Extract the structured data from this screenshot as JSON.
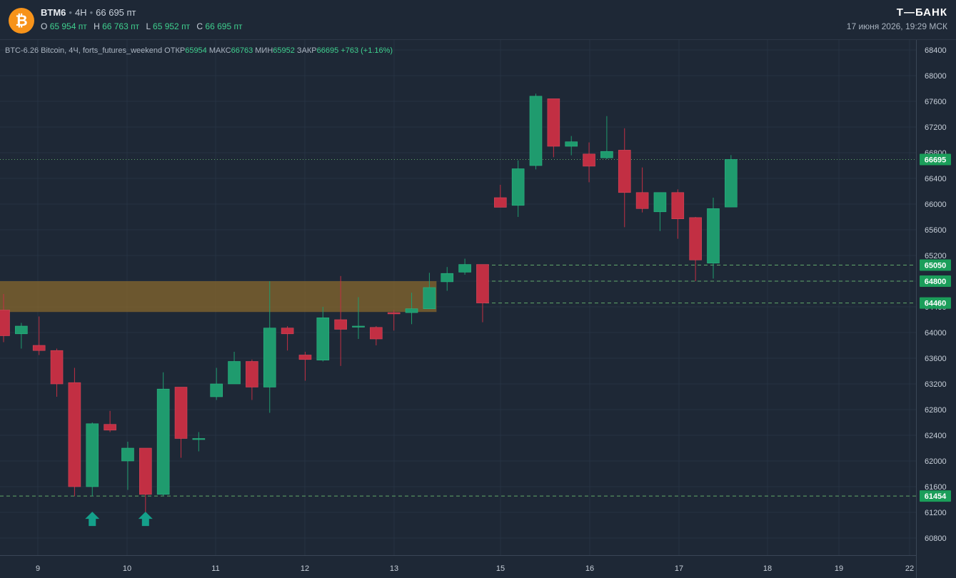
{
  "header": {
    "symbol": "BTM6",
    "interval": "4H",
    "last_price": "66 695 пт",
    "ohlc": [
      {
        "label": "O",
        "value": "65 954 пт"
      },
      {
        "label": "H",
        "value": "66 763 пт"
      },
      {
        "label": "L",
        "value": "65 952 пт"
      },
      {
        "label": "C",
        "value": "66 695 пт"
      }
    ],
    "brand": "Т—БАНК",
    "datetime": "17 июня 2026, 19:29 МСК",
    "logo_glyph": "₿",
    "logo_icon": "bitcoin-logo-icon"
  },
  "legend": {
    "instrument": "BTC-6.26 Bitcoin, 4Ч, forts_futures_weekend",
    "open_label": "ОТКР",
    "open": "65954",
    "high_label": "МАКС",
    "high": "66763",
    "low_label": "МИН",
    "low": "65952",
    "close_label": "ЗАКР",
    "close": "66695",
    "change": "+763 (+1.16%)"
  },
  "colors": {
    "background": "#1e2836",
    "up": "#1f9b6e",
    "down": "#c22f43",
    "zone": "#8a6a2c",
    "level_line": "#6fbf73",
    "price_tag": "#1b9e5a",
    "arrow": "#14a08a"
  },
  "chart_data": {
    "type": "candlestick",
    "y_axis": {
      "ticks": [
        68400,
        68000,
        67600,
        67200,
        66800,
        66400,
        66000,
        65600,
        65200,
        64800,
        64400,
        64000,
        63600,
        63200,
        62800,
        62400,
        62000,
        61600,
        61200,
        60800
      ],
      "range": [
        60500,
        68600
      ]
    },
    "x_axis": {
      "ticks": [
        "9",
        "10",
        "11",
        "12",
        "13",
        "15",
        "16",
        "17",
        "18",
        "19",
        "22"
      ]
    },
    "candles": [
      {
        "o": 64350,
        "h": 64600,
        "l": 63850,
        "c": 63950
      },
      {
        "o": 63980,
        "h": 64150,
        "l": 63750,
        "c": 64100
      },
      {
        "o": 63800,
        "h": 64250,
        "l": 63650,
        "c": 63720
      },
      {
        "o": 63720,
        "h": 63750,
        "l": 63000,
        "c": 63200
      },
      {
        "o": 63220,
        "h": 63450,
        "l": 61450,
        "c": 61600
      },
      {
        "o": 61600,
        "h": 62600,
        "l": 61450,
        "c": 62580
      },
      {
        "o": 62570,
        "h": 62780,
        "l": 62450,
        "c": 62480
      },
      {
        "o": 62000,
        "h": 62300,
        "l": 61550,
        "c": 62200
      },
      {
        "o": 62200,
        "h": 62200,
        "l": 61150,
        "c": 61480
      },
      {
        "o": 61480,
        "h": 63380,
        "l": 61450,
        "c": 63120
      },
      {
        "o": 63150,
        "h": 63150,
        "l": 62050,
        "c": 62350
      },
      {
        "o": 62350,
        "h": 62450,
        "l": 62150,
        "c": 62350
      },
      {
        "o": 63000,
        "h": 63450,
        "l": 62950,
        "c": 63200
      },
      {
        "o": 63200,
        "h": 63700,
        "l": 63200,
        "c": 63550
      },
      {
        "o": 63550,
        "h": 63580,
        "l": 62950,
        "c": 63150
      },
      {
        "o": 63150,
        "h": 64800,
        "l": 62750,
        "c": 64070
      },
      {
        "o": 64070,
        "h": 64100,
        "l": 63720,
        "c": 63980
      },
      {
        "o": 63650,
        "h": 63700,
        "l": 63250,
        "c": 63580
      },
      {
        "o": 63570,
        "h": 64400,
        "l": 63550,
        "c": 64230
      },
      {
        "o": 64200,
        "h": 64880,
        "l": 63480,
        "c": 64050
      },
      {
        "o": 64100,
        "h": 64550,
        "l": 63900,
        "c": 64100
      },
      {
        "o": 64080,
        "h": 64100,
        "l": 63800,
        "c": 63900
      },
      {
        "o": 64310,
        "h": 64350,
        "l": 64030,
        "c": 64290
      },
      {
        "o": 64310,
        "h": 64620,
        "l": 64130,
        "c": 64370
      },
      {
        "o": 64370,
        "h": 64930,
        "l": 64370,
        "c": 64700
      },
      {
        "o": 64790,
        "h": 65020,
        "l": 64650,
        "c": 64920
      },
      {
        "o": 64940,
        "h": 65150,
        "l": 64900,
        "c": 65060
      },
      {
        "o": 65060,
        "h": 65060,
        "l": 64160,
        "c": 64460
      },
      {
        "o": 66100,
        "h": 66300,
        "l": 65950,
        "c": 65950
      },
      {
        "o": 65980,
        "h": 66680,
        "l": 65800,
        "c": 66550
      },
      {
        "o": 66600,
        "h": 67720,
        "l": 66540,
        "c": 67680
      },
      {
        "o": 67640,
        "h": 67640,
        "l": 66730,
        "c": 66900
      },
      {
        "o": 66900,
        "h": 67060,
        "l": 66760,
        "c": 66970
      },
      {
        "o": 66780,
        "h": 66960,
        "l": 66340,
        "c": 66590
      },
      {
        "o": 66720,
        "h": 67370,
        "l": 66700,
        "c": 66820
      },
      {
        "o": 66840,
        "h": 67180,
        "l": 65640,
        "c": 66180
      },
      {
        "o": 66180,
        "h": 66570,
        "l": 65870,
        "c": 65930
      },
      {
        "o": 65880,
        "h": 66170,
        "l": 65580,
        "c": 66180
      },
      {
        "o": 66180,
        "h": 66230,
        "l": 65460,
        "c": 65770
      },
      {
        "o": 65790,
        "h": 65800,
        "l": 64800,
        "c": 65130
      },
      {
        "o": 65080,
        "h": 66100,
        "l": 64840,
        "c": 65930
      },
      {
        "o": 65954,
        "h": 66763,
        "l": 65952,
        "c": 66695
      }
    ],
    "zone": {
      "from": 64320,
      "to": 64800,
      "end_candle": 24
    },
    "levels": [
      {
        "price": 66695,
        "label": "66695",
        "style": "dotted-current"
      },
      {
        "price": 65050,
        "label": "65050",
        "style": "dashed"
      },
      {
        "price": 64800,
        "label": "64800",
        "style": "dashed"
      },
      {
        "price": 64460,
        "label": "64460",
        "style": "dashed"
      },
      {
        "price": 61454,
        "label": "61454",
        "style": "dashed"
      }
    ],
    "arrows": [
      {
        "candle": 5,
        "direction": "up",
        "icon": "up-arrow-icon"
      },
      {
        "candle": 8,
        "direction": "up",
        "icon": "up-arrow-icon"
      }
    ]
  }
}
